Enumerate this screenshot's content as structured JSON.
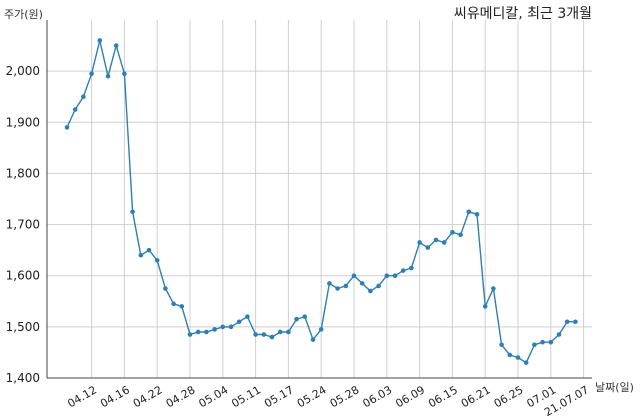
{
  "chart_data": {
    "type": "line",
    "title": "씨유메디칼, 최근 3개월",
    "ylabel": "주가(원)",
    "xlabel": "날짜(일)",
    "ylim": [
      1400,
      2100
    ],
    "yticks": [
      1400,
      1500,
      1600,
      1700,
      1800,
      1900,
      2000
    ],
    "ytick_labels": [
      "1,400",
      "1,500",
      "1,600",
      "1,700",
      "1,800",
      "1,900",
      "2,000"
    ],
    "xtick_labels": [
      "04.12",
      "04.16",
      "04.22",
      "04.28",
      "05.04",
      "05.11",
      "05.17",
      "05.24",
      "05.28",
      "06.03",
      "06.09",
      "06.15",
      "06.21",
      "06.25",
      "07.01",
      "21.07.07"
    ],
    "xtick_index": [
      3,
      7,
      11,
      15,
      19,
      23,
      27,
      31,
      35,
      39,
      43,
      47,
      51,
      55,
      59,
      63
    ],
    "grid": true,
    "color": "#2e7fb3",
    "values": [
      1890,
      1925,
      1950,
      1995,
      2060,
      1990,
      2050,
      1995,
      1725,
      1640,
      1650,
      1630,
      1575,
      1545,
      1540,
      1485,
      1490,
      1490,
      1495,
      1500,
      1500,
      1510,
      1520,
      1485,
      1485,
      1480,
      1490,
      1490,
      1515,
      1520,
      1475,
      1495,
      1585,
      1575,
      1580,
      1600,
      1585,
      1570,
      1580,
      1600,
      1600,
      1610,
      1615,
      1665,
      1655,
      1670,
      1665,
      1685,
      1680,
      1725,
      1720,
      1540,
      1575,
      1465,
      1445,
      1440,
      1430,
      1465,
      1470,
      1470,
      1485,
      1510,
      1510
    ]
  }
}
